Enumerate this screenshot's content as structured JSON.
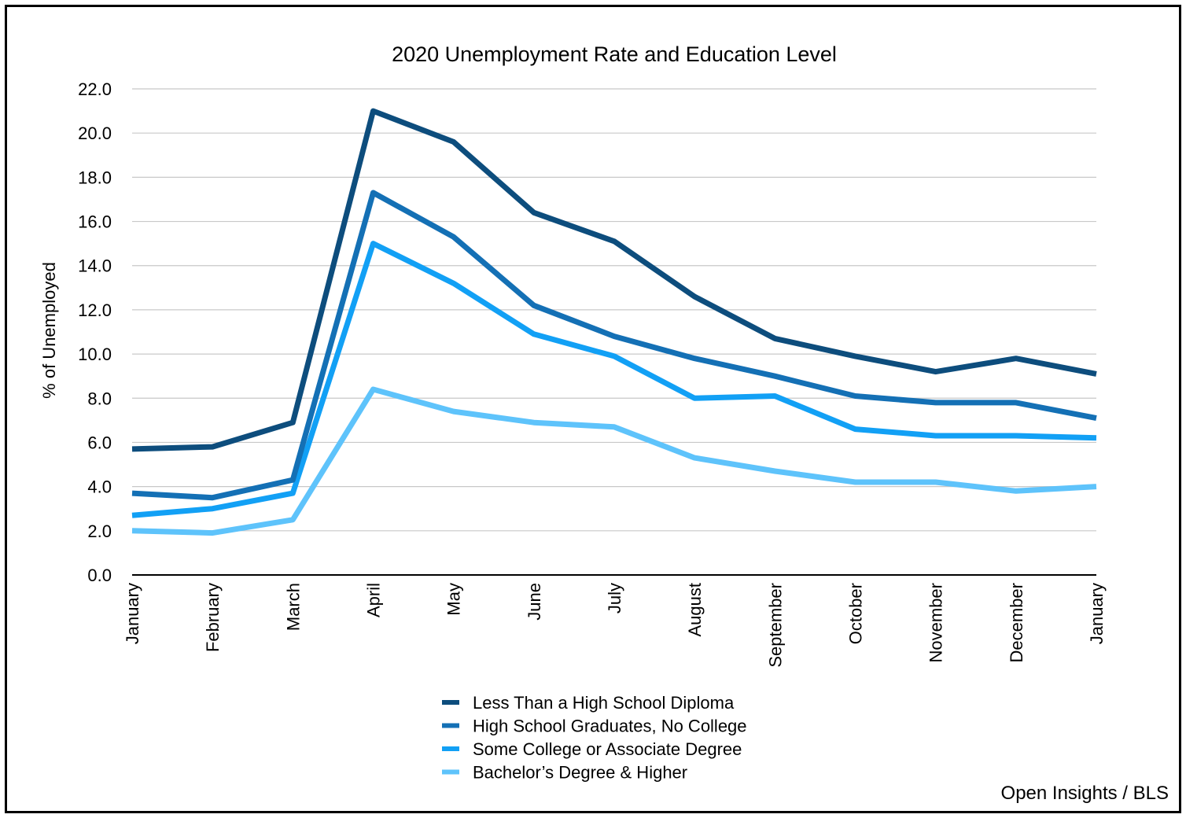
{
  "chart_data": {
    "type": "line",
    "title": "2020 Unemployment Rate and Education Level",
    "xlabel": "",
    "ylabel": "% of Unemployed",
    "ylim": [
      0,
      22
    ],
    "yticks": [
      "0.0",
      "2.0",
      "4.0",
      "6.0",
      "8.0",
      "10.0",
      "12.0",
      "14.0",
      "16.0",
      "18.0",
      "20.0",
      "22.0"
    ],
    "grid": true,
    "legend_position": "bottom",
    "categories": [
      "January",
      "February",
      "March",
      "April",
      "May",
      "June",
      "July",
      "August",
      "September",
      "October",
      "November",
      "December",
      "January"
    ],
    "series": [
      {
        "name": "Less Than a High School Diploma",
        "color": "#0d4d7d",
        "values": [
          5.7,
          5.8,
          6.9,
          21.0,
          19.6,
          16.4,
          15.1,
          12.6,
          10.7,
          9.9,
          9.2,
          9.8,
          9.1
        ]
      },
      {
        "name": "High School Graduates, No College",
        "color": "#1470b5",
        "values": [
          3.7,
          3.5,
          4.3,
          17.3,
          15.3,
          12.2,
          10.8,
          9.8,
          9.0,
          8.1,
          7.8,
          7.8,
          7.1
        ]
      },
      {
        "name": "Some College or Associate Degree",
        "color": "#12a0f5",
        "values": [
          2.7,
          3.0,
          3.7,
          15.0,
          13.2,
          10.9,
          9.9,
          8.0,
          8.1,
          6.6,
          6.3,
          6.3,
          6.2
        ]
      },
      {
        "name": "Bachelor’s Degree & Higher",
        "color": "#5ec3fb",
        "values": [
          2.0,
          1.9,
          2.5,
          8.4,
          7.4,
          6.9,
          6.7,
          5.3,
          4.7,
          4.2,
          4.2,
          3.8,
          4.0
        ]
      }
    ],
    "source": "Open Insights / BLS"
  }
}
